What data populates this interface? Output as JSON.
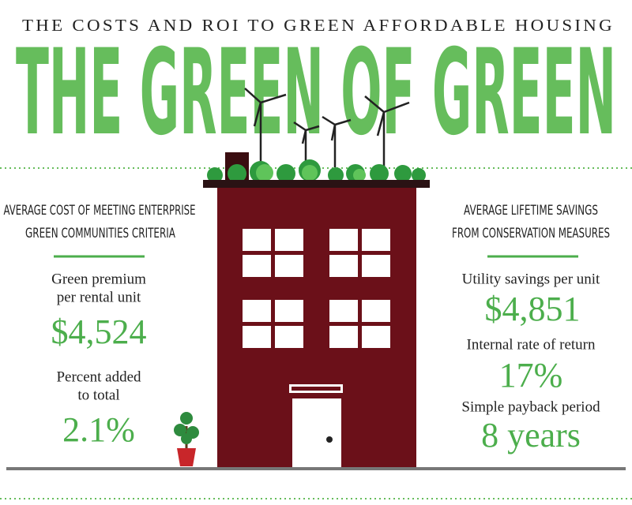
{
  "header": {
    "subtitle": "THE COSTS AND ROI TO GREEN AFFORDABLE HOUSING",
    "title": "THE GREEN OF GREEN"
  },
  "left": {
    "heading": [
      "AVERAGE COST OF MEETING ENTERPRISE",
      "GREEN COMMUNITIES CRITERIA"
    ],
    "items": [
      {
        "label": [
          "Green premium",
          "per rental unit"
        ],
        "value": "$4,524"
      },
      {
        "label": [
          "Percent added",
          "to total"
        ],
        "value": "2.1%"
      }
    ]
  },
  "right": {
    "heading": [
      "AVERAGE LIFETIME SAVINGS",
      "FROM CONSERVATION MEASURES"
    ],
    "items": [
      {
        "label": "Utility savings per unit",
        "value": "$4,851"
      },
      {
        "label": "Internal rate of return",
        "value": "17%"
      },
      {
        "label": "Simple payback period",
        "value": "8 years"
      }
    ]
  }
}
